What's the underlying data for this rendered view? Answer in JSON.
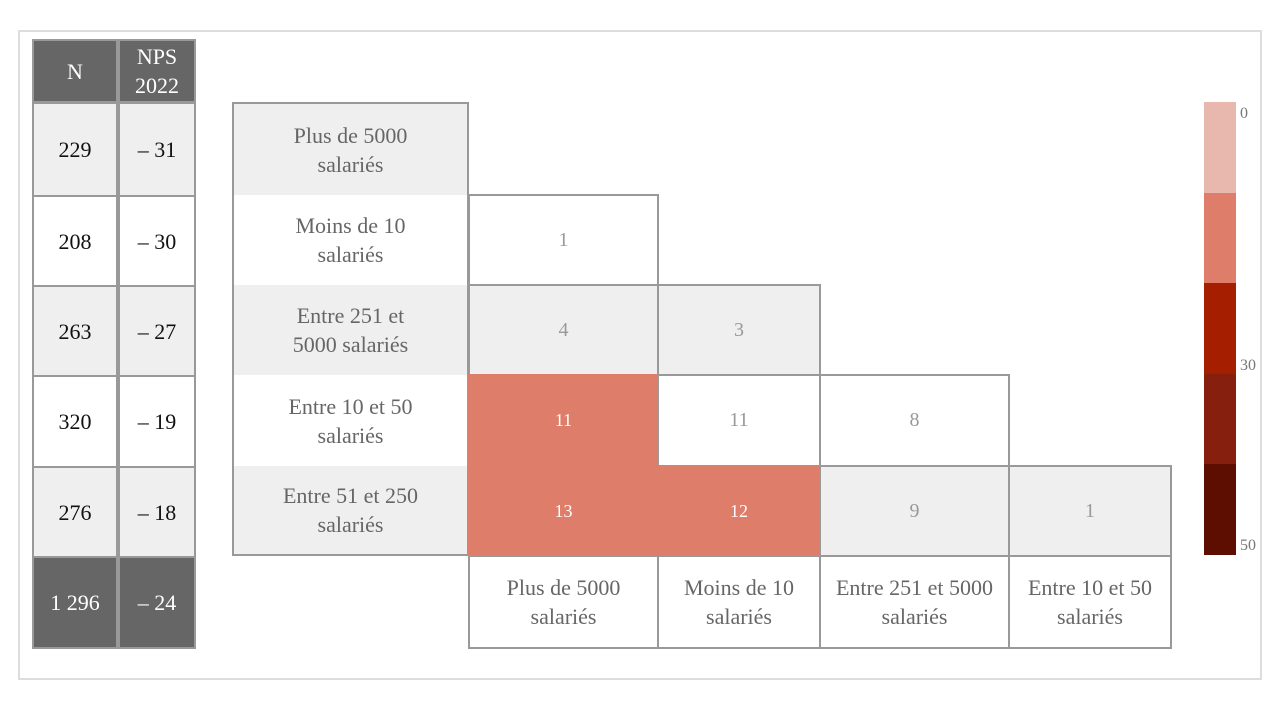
{
  "left_table": {
    "headers": [
      "N",
      "NPS\n2022"
    ],
    "rows": [
      [
        "229",
        "– 31"
      ],
      [
        "208",
        "– 30"
      ],
      [
        "263",
        "– 27"
      ],
      [
        "320",
        "– 19"
      ],
      [
        "276",
        "– 18"
      ]
    ],
    "total": [
      "1 296",
      "– 24"
    ]
  },
  "chart_data": {
    "type": "heatmap",
    "row_labels": [
      "Plus de 5000 salariés",
      "Moins de 10 salariés",
      "Entre 251 et 5000 salariés",
      "Entre 10 et 50 salariés",
      "Entre 51 et 250 salariés"
    ],
    "col_labels": [
      "Plus de 5000 salariés",
      "Moins de 10 salariés",
      "Entre 251 et 5000 salariés",
      "Entre 10 et 50 salariés"
    ],
    "values": [
      [
        null,
        null,
        null,
        null
      ],
      [
        1,
        null,
        null,
        null
      ],
      [
        4,
        3,
        null,
        null
      ],
      [
        11,
        11,
        8,
        null
      ],
      [
        13,
        12,
        9,
        1
      ]
    ],
    "highlighted": [
      [
        false,
        false,
        false,
        false
      ],
      [
        false,
        false,
        false,
        false
      ],
      [
        false,
        false,
        false,
        false
      ],
      [
        true,
        false,
        false,
        false
      ],
      [
        true,
        true,
        false,
        false
      ]
    ],
    "highlight_color": "#df7d6b",
    "colorscale": {
      "range": [
        0,
        50
      ],
      "tick_labels": [
        "0",
        "30",
        "50"
      ],
      "colors": [
        "#e8b8ae",
        "#df7d6b",
        "#a51e00",
        "#861f0e",
        "#5e0e00"
      ]
    }
  }
}
